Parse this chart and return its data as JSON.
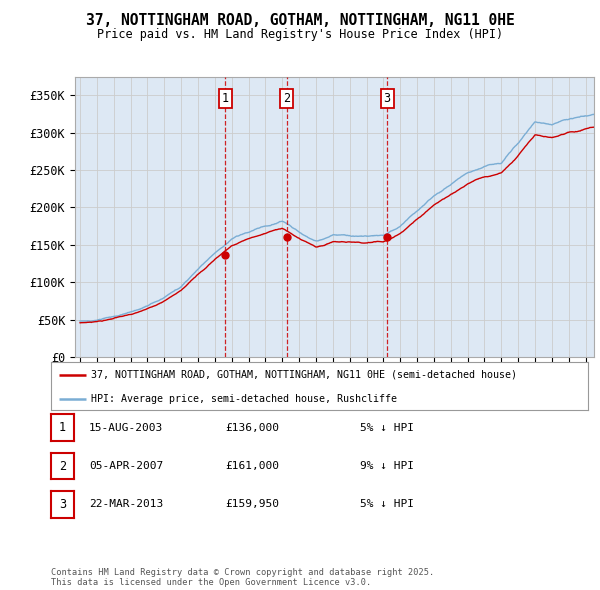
{
  "title": "37, NOTTINGHAM ROAD, GOTHAM, NOTTINGHAM, NG11 0HE",
  "subtitle": "Price paid vs. HM Land Registry's House Price Index (HPI)",
  "ylabel_ticks": [
    "£0",
    "£50K",
    "£100K",
    "£150K",
    "£200K",
    "£250K",
    "£300K",
    "£350K"
  ],
  "ytick_vals": [
    0,
    50000,
    100000,
    150000,
    200000,
    250000,
    300000,
    350000
  ],
  "ylim": [
    0,
    375000
  ],
  "xlim_start": 1994.7,
  "xlim_end": 2025.5,
  "sale_year_floats": [
    2003.625,
    2007.258,
    2013.225
  ],
  "sale_prices": [
    136000,
    161000,
    159950
  ],
  "sale_labels": [
    "1",
    "2",
    "3"
  ],
  "legend_red": "37, NOTTINGHAM ROAD, GOTHAM, NOTTINGHAM, NG11 0HE (semi-detached house)",
  "legend_blue": "HPI: Average price, semi-detached house, Rushcliffe",
  "table_data": [
    [
      "1",
      "15-AUG-2003",
      "£136,000",
      "5% ↓ HPI"
    ],
    [
      "2",
      "05-APR-2007",
      "£161,000",
      "9% ↓ HPI"
    ],
    [
      "3",
      "22-MAR-2013",
      "£159,950",
      "5% ↓ HPI"
    ]
  ],
  "footer": "Contains HM Land Registry data © Crown copyright and database right 2025.\nThis data is licensed under the Open Government Licence v3.0.",
  "red_color": "#cc0000",
  "blue_color": "#7aadd4",
  "grid_color": "#cccccc",
  "bg_color": "#dde8f4",
  "plot_bg": "#ffffff",
  "hpi_base_points": [
    [
      1995.0,
      48000
    ],
    [
      1996.0,
      50000
    ],
    [
      1997.0,
      54000
    ],
    [
      1998.0,
      60000
    ],
    [
      1999.0,
      68000
    ],
    [
      2000.0,
      79000
    ],
    [
      2001.0,
      94000
    ],
    [
      2002.0,
      118000
    ],
    [
      2003.0,
      138000
    ],
    [
      2004.0,
      158000
    ],
    [
      2005.0,
      167000
    ],
    [
      2006.0,
      175000
    ],
    [
      2007.0,
      182000
    ],
    [
      2007.5,
      175000
    ],
    [
      2008.0,
      168000
    ],
    [
      2009.0,
      155000
    ],
    [
      2009.5,
      158000
    ],
    [
      2010.0,
      163000
    ],
    [
      2011.0,
      162000
    ],
    [
      2012.0,
      162000
    ],
    [
      2013.0,
      163000
    ],
    [
      2014.0,
      175000
    ],
    [
      2015.0,
      195000
    ],
    [
      2016.0,
      215000
    ],
    [
      2017.0,
      230000
    ],
    [
      2018.0,
      245000
    ],
    [
      2019.0,
      255000
    ],
    [
      2020.0,
      260000
    ],
    [
      2021.0,
      285000
    ],
    [
      2022.0,
      315000
    ],
    [
      2023.0,
      310000
    ],
    [
      2024.0,
      318000
    ],
    [
      2025.5,
      325000
    ]
  ],
  "hpi_noise_scale": 3500,
  "hpi_noise_seed": 42,
  "red_noise_scale": 2800,
  "red_noise_seed": 17,
  "red_scale": 0.945
}
